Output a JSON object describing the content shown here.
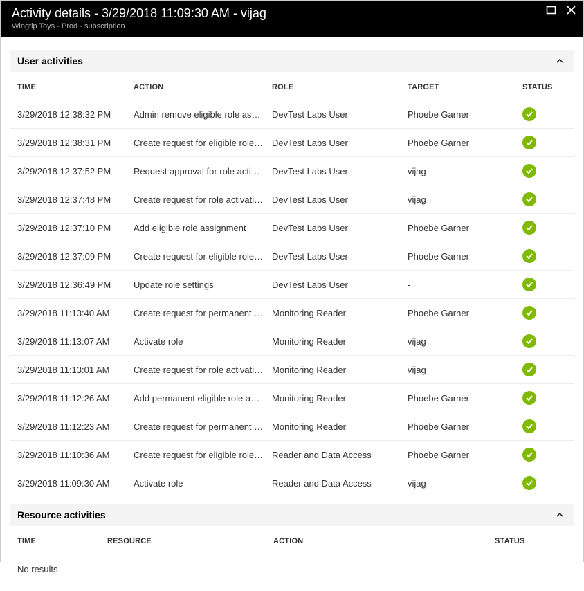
{
  "header": {
    "title": "Activity details - 3/29/2018 11:09:30 AM - vijag",
    "subtitle": "Wingtip Toys - Prod - subscription"
  },
  "colors": {
    "header_bg": "#000000",
    "header_text": "#ffffff",
    "subheader_text": "#b3b3b3",
    "section_bg": "#f4f4f4",
    "row_border": "#ededed",
    "status_ok": "#7fba00"
  },
  "user_activities": {
    "section_title": "User activities",
    "columns": {
      "time": "TIME",
      "action": "ACTION",
      "role": "ROLE",
      "target": "TARGET",
      "status": "STATUS"
    },
    "rows": [
      {
        "time": "3/29/2018 12:38:32 PM",
        "action": "Admin remove eligible role assign…",
        "role": "DevTest Labs User",
        "target": "Phoebe Garner",
        "status": "ok"
      },
      {
        "time": "3/29/2018 12:38:31 PM",
        "action": "Create request for eligible role re…",
        "role": "DevTest Labs User",
        "target": "Phoebe Garner",
        "status": "ok"
      },
      {
        "time": "3/29/2018 12:37:52 PM",
        "action": "Request approval for role activation",
        "role": "DevTest Labs User",
        "target": "vijag",
        "status": "ok"
      },
      {
        "time": "3/29/2018 12:37:48 PM",
        "action": "Create request for role activation",
        "role": "DevTest Labs User",
        "target": "vijag",
        "status": "ok"
      },
      {
        "time": "3/29/2018 12:37:10 PM",
        "action": "Add eligible role assignment",
        "role": "DevTest Labs User",
        "target": "Phoebe Garner",
        "status": "ok"
      },
      {
        "time": "3/29/2018 12:37:09 PM",
        "action": "Create request for eligible role ass…",
        "role": "DevTest Labs User",
        "target": "Phoebe Garner",
        "status": "ok"
      },
      {
        "time": "3/29/2018 12:36:49 PM",
        "action": "Update role settings",
        "role": "DevTest Labs User",
        "target": "-",
        "status": "ok"
      },
      {
        "time": "3/29/2018 11:13:40 AM",
        "action": "Create request for permanent elig…",
        "role": "Monitoring Reader",
        "target": "Phoebe Garner",
        "status": "ok"
      },
      {
        "time": "3/29/2018 11:13:07 AM",
        "action": "Activate role",
        "role": "Monitoring Reader",
        "target": "vijag",
        "status": "ok"
      },
      {
        "time": "3/29/2018 11:13:01 AM",
        "action": "Create request for role activation",
        "role": "Monitoring Reader",
        "target": "vijag",
        "status": "ok"
      },
      {
        "time": "3/29/2018 11:12:26 AM",
        "action": "Add permanent eligible role assig…",
        "role": "Monitoring Reader",
        "target": "Phoebe Garner",
        "status": "ok"
      },
      {
        "time": "3/29/2018 11:12:23 AM",
        "action": "Create request for permanent elig…",
        "role": "Monitoring Reader",
        "target": "Phoebe Garner",
        "status": "ok"
      },
      {
        "time": "3/29/2018 11:10:36 AM",
        "action": "Create request for eligible role re…",
        "role": "Reader and Data Access",
        "target": "Phoebe Garner",
        "status": "ok"
      },
      {
        "time": "3/29/2018 11:09:30 AM",
        "action": "Activate role",
        "role": "Reader and Data Access",
        "target": "vijag",
        "status": "ok"
      }
    ]
  },
  "resource_activities": {
    "section_title": "Resource activities",
    "columns": {
      "time": "TIME",
      "resource": "RESOURCE",
      "action": "ACTION",
      "status": "STATUS"
    },
    "no_results": "No results"
  }
}
